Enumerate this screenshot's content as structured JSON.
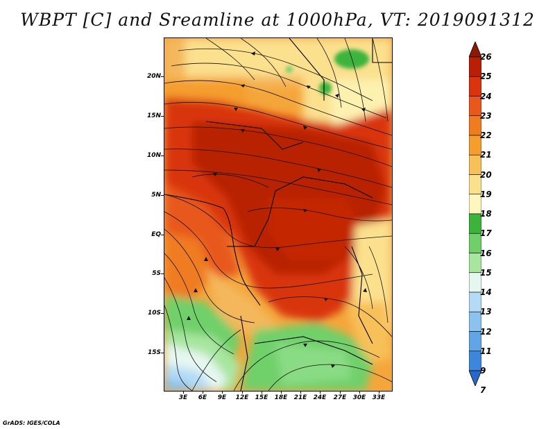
{
  "title": "WBPT [C] and Sreamline at 1000hPa, VT: 2019091312",
  "footer": "GrADS: IGES/COLA",
  "lat_labels": [
    "20N",
    "15N",
    "10N",
    "5N",
    "EQ",
    "5S",
    "10S",
    "15S"
  ],
  "lon_labels": [
    "3E",
    "6E",
    "9E",
    "12E",
    "15E",
    "18E",
    "21E",
    "24E",
    "27E",
    "30E",
    "33E"
  ],
  "colorbar": {
    "labels": [
      "26",
      "25",
      "24",
      "23",
      "22",
      "21",
      "20",
      "19",
      "18",
      "17",
      "16",
      "15",
      "14",
      "13",
      "12",
      "11",
      "9",
      "7"
    ],
    "colors": [
      "#8b1a00",
      "#b82005",
      "#d9340e",
      "#e8581b",
      "#f07c20",
      "#f59e2e",
      "#f8c058",
      "#fbe08e",
      "#fdf7bf",
      "#3cb43c",
      "#6fd06a",
      "#a8e6a0",
      "#e6f7f0",
      "#b4daf5",
      "#8cc2ee",
      "#62a5e6",
      "#3c86dc",
      "#2a66cc"
    ]
  }
}
